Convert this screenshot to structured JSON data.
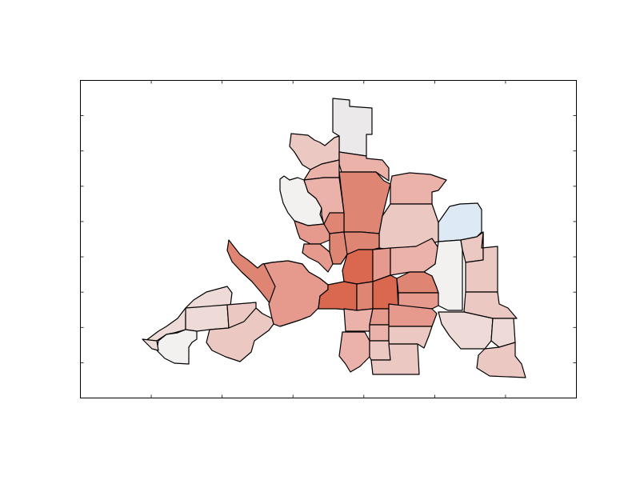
{
  "map": {
    "type": "choropleth",
    "axes_frame": true,
    "tick_labels_visible": false,
    "x_tick_count": 6,
    "y_tick_count": 8,
    "background": "#ffffff",
    "outline_color": "#000000",
    "colors": {
      "deep": "#d9684f",
      "strong": "#df8574",
      "medium": "#e69a8d",
      "light": "#eab2a8",
      "pale": "#ecc8c2",
      "very_pale": "#eedad7",
      "near_white": "#f3f0f0",
      "gray": "#ebe9e9",
      "blue": "#ddeaf5"
    }
  }
}
